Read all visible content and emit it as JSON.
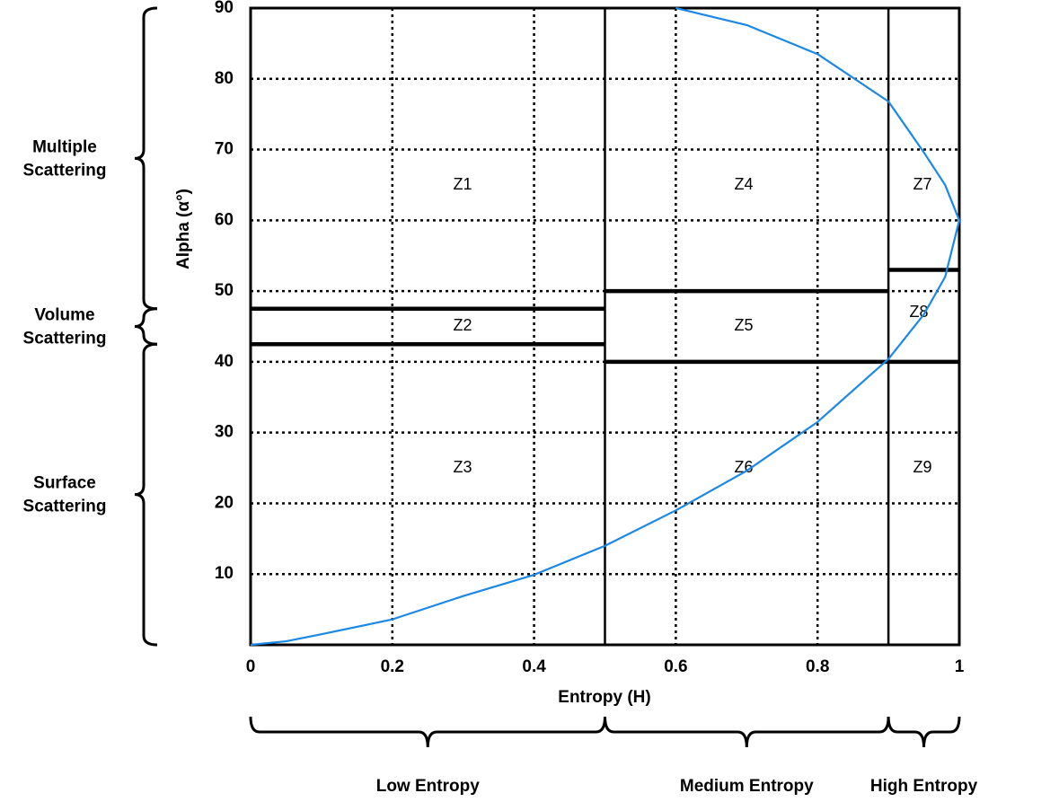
{
  "chart_data": {
    "type": "line",
    "x_label": "Entropy (H)",
    "y_label": "Alpha (α°)",
    "xlim": [
      0,
      1
    ],
    "xticks": [
      0,
      0.2,
      0.4,
      0.6,
      0.8,
      1
    ],
    "ylim": [
      0,
      90
    ],
    "yticks": [
      10,
      20,
      30,
      40,
      50,
      60,
      70,
      80,
      90
    ],
    "grid": true,
    "series": [
      {
        "color": "#1a88e6",
        "x": [
          0,
          0.05,
          0.1,
          0.2,
          0.3,
          0.4,
          0.5,
          0.6,
          0.7,
          0.8,
          0.9,
          0.95,
          0.98,
          1,
          0.98,
          0.95,
          0.9,
          0.8,
          0.7,
          0.6
        ],
        "values": [
          0,
          0.5,
          1.5,
          3.6,
          6.9,
          9.9,
          14,
          19,
          24.6,
          31.5,
          40.4,
          46.7,
          52,
          60,
          65,
          69.6,
          76.8,
          83.5,
          87.6,
          90
        ]
      }
    ],
    "vertical_boundaries": [
      0.5,
      0.9
    ],
    "horizontal_boundaries": [
      {
        "h": [
          0,
          0.5
        ],
        "alpha": 47.5
      },
      {
        "h": [
          0,
          0.5
        ],
        "alpha": 42.5
      },
      {
        "h": [
          0.5,
          0.9
        ],
        "alpha": 50
      },
      {
        "h": [
          0.5,
          0.9
        ],
        "alpha": 40
      },
      {
        "h": [
          0.9,
          1
        ],
        "alpha": 53
      },
      {
        "h": [
          0.9,
          1
        ],
        "alpha": 40
      }
    ],
    "zones": [
      "Z1",
      "Z2",
      "Z3",
      "Z4",
      "Z5",
      "Z6",
      "Z7",
      "Z8",
      "Z9"
    ],
    "alpha_groups": [
      {
        "label": [
          "Multiple",
          "Scattering"
        ],
        "range": [
          47.5,
          90
        ]
      },
      {
        "label": [
          "Volume",
          "Scattering"
        ],
        "range": [
          42.5,
          47.5
        ]
      },
      {
        "label": [
          "Surface",
          "Scattering"
        ],
        "range": [
          0,
          42.5
        ]
      }
    ],
    "entropy_groups": [
      {
        "label": "Low Entropy",
        "range": [
          0,
          0.5
        ]
      },
      {
        "label": "Medium Entropy",
        "range": [
          0.5,
          0.9
        ]
      },
      {
        "label": "High Entropy",
        "range": [
          0.9,
          1
        ]
      }
    ]
  }
}
